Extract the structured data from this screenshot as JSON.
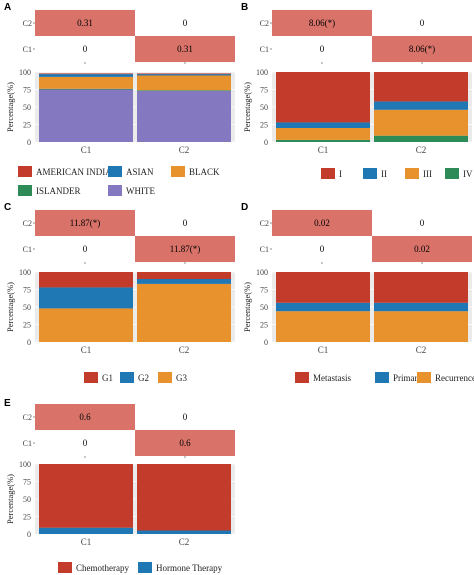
{
  "chart_data": [
    {
      "panel_label": "A",
      "type": "heatmap",
      "rows": [
        "C2",
        "C1"
      ],
      "heatmap": [
        [
          "0.31",
          "0"
        ],
        [
          "0",
          "0.31"
        ]
      ],
      "bar": {
        "type": "bar",
        "stacked": true,
        "categories": [
          "C1",
          "C2"
        ],
        "ylabel": "Percentage(%)",
        "ylim": [
          0,
          100
        ],
        "yticks": [
          "0",
          "25",
          "50",
          "75",
          "100"
        ],
        "series": [
          {
            "name": "AMERICAN INDIAN",
            "color": "#c23b2b",
            "values": [
              1,
              1
            ]
          },
          {
            "name": "ASIAN",
            "color": "#1f77b4",
            "values": [
              4,
              2
            ]
          },
          {
            "name": "BLACK",
            "color": "#e8922e",
            "values": [
              17,
              21
            ]
          },
          {
            "name": "ISLANDER",
            "color": "#2e8b57",
            "values": [
              1,
              1
            ]
          },
          {
            "name": "WHITE",
            "color": "#8479c0",
            "values": [
              75,
              73
            ]
          }
        ]
      }
    },
    {
      "panel_label": "B",
      "type": "heatmap",
      "rows": [
        "C2",
        "C1"
      ],
      "heatmap": [
        [
          "8.06(*)",
          "0"
        ],
        [
          "0",
          "8.06(*)"
        ]
      ],
      "bar": {
        "type": "bar",
        "stacked": true,
        "categories": [
          "C1",
          "C2"
        ],
        "ylabel": "Percentage(%)",
        "ylim": [
          0,
          100
        ],
        "yticks": [
          "0",
          "25",
          "50",
          "75",
          "100"
        ],
        "series": [
          {
            "name": "I",
            "color": "#c23b2b",
            "values": [
              72,
              42
            ]
          },
          {
            "name": "II",
            "color": "#1f77b4",
            "values": [
              8,
              12
            ]
          },
          {
            "name": "III",
            "color": "#e8922e",
            "values": [
              17,
              37
            ]
          },
          {
            "name": "IV",
            "color": "#2e8b57",
            "values": [
              3,
              9
            ]
          }
        ]
      }
    },
    {
      "panel_label": "C",
      "type": "heatmap",
      "rows": [
        "C2",
        "C1"
      ],
      "heatmap": [
        [
          "11.87(*)",
          "0"
        ],
        [
          "0",
          "11.87(*)"
        ]
      ],
      "bar": {
        "type": "bar",
        "stacked": true,
        "categories": [
          "C1",
          "C2"
        ],
        "ylabel": "Percentage(%)",
        "ylim": [
          0,
          100
        ],
        "yticks": [
          "0",
          "25",
          "50",
          "75",
          "100"
        ],
        "series": [
          {
            "name": "G1",
            "color": "#c23b2b",
            "values": [
              22,
              10
            ]
          },
          {
            "name": "G2",
            "color": "#1f77b4",
            "values": [
              30,
              7
            ]
          },
          {
            "name": "G3",
            "color": "#e8922e",
            "values": [
              48,
              83
            ]
          }
        ]
      }
    },
    {
      "panel_label": "D",
      "type": "heatmap",
      "rows": [
        "C2",
        "C1"
      ],
      "heatmap": [
        [
          "0.02",
          "0"
        ],
        [
          "0",
          "0.02"
        ]
      ],
      "bar": {
        "type": "bar",
        "stacked": true,
        "categories": [
          "C1",
          "C2"
        ],
        "ylabel": "Percentage(%)",
        "ylim": [
          0,
          100
        ],
        "yticks": [
          "0",
          "25",
          "50",
          "75",
          "100"
        ],
        "series": [
          {
            "name": "Metastasis",
            "color": "#c23b2b",
            "values": [
              44,
              44
            ]
          },
          {
            "name": "Primary",
            "color": "#1f77b4",
            "values": [
              12,
              12
            ]
          },
          {
            "name": "Recurrence",
            "color": "#e8922e",
            "values": [
              44,
              44
            ]
          }
        ]
      }
    },
    {
      "panel_label": "E",
      "type": "heatmap",
      "rows": [
        "C2",
        "C1"
      ],
      "heatmap": [
        [
          "0.6",
          "0"
        ],
        [
          "0",
          "0.6"
        ]
      ],
      "bar": {
        "type": "bar",
        "stacked": true,
        "categories": [
          "C1",
          "C2"
        ],
        "ylabel": "Percentage(%)",
        "ylim": [
          0,
          100
        ],
        "yticks": [
          "0",
          "25",
          "50",
          "75",
          "100"
        ],
        "series": [
          {
            "name": "Chemotherapy",
            "color": "#c23b2b",
            "values": [
              91,
              95
            ]
          },
          {
            "name": "Hormone Therapy",
            "color": "#1f77b4",
            "values": [
              9,
              5
            ]
          }
        ]
      }
    }
  ],
  "style": {
    "heatmap_high": "#d9736a",
    "heatmap_low": "#ffffff",
    "panel_bg": "#ebebeb",
    "grid": "#ffffff"
  }
}
